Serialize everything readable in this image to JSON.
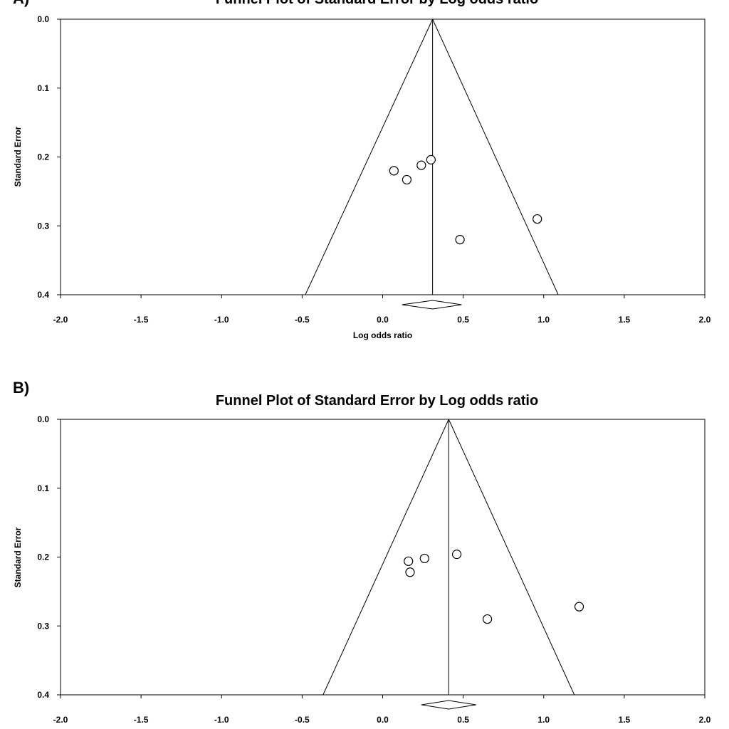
{
  "chart_data": [
    {
      "type": "scatter",
      "panel_label": "A)",
      "title": "Funnel Plot of Standard Error by Log odds ratio",
      "xlabel": "Log odds ratio",
      "ylabel": "Standard Error",
      "xlim": [
        -2.0,
        2.0
      ],
      "ylim": [
        0.0,
        0.4
      ],
      "y_inverted": true,
      "x_ticks": [
        "-2.0",
        "-1.5",
        "-1.0",
        "-0.5",
        "0.0",
        "0.5",
        "1.0",
        "1.5",
        "2.0"
      ],
      "y_ticks": [
        "0.0",
        "0.1",
        "0.2",
        "0.3",
        "0.4"
      ],
      "pooled_estimate": 0.31,
      "funnel_bottom_x": [
        -0.48,
        1.09
      ],
      "diamond": {
        "center": 0.31,
        "lower": 0.12,
        "upper": 0.49
      },
      "points": [
        {
          "x": 0.07,
          "y": 0.22
        },
        {
          "x": 0.15,
          "y": 0.233
        },
        {
          "x": 0.24,
          "y": 0.212
        },
        {
          "x": 0.3,
          "y": 0.204
        },
        {
          "x": 0.48,
          "y": 0.32
        },
        {
          "x": 0.96,
          "y": 0.29
        }
      ]
    },
    {
      "type": "scatter",
      "panel_label": "B)",
      "title": "Funnel Plot of Standard Error by Log odds ratio",
      "xlabel": "",
      "ylabel": "Standard Error",
      "xlim": [
        -2.0,
        2.0
      ],
      "ylim": [
        0.0,
        0.4
      ],
      "y_inverted": true,
      "x_ticks": [
        "-2.0",
        "-1.5",
        "-1.0",
        "-0.5",
        "0.0",
        "0.5",
        "1.0",
        "1.5",
        "2.0"
      ],
      "y_ticks": [
        "0.0",
        "0.1",
        "0.2",
        "0.3",
        "0.4"
      ],
      "pooled_estimate": 0.41,
      "funnel_bottom_x": [
        -0.37,
        1.19
      ],
      "diamond": {
        "center": 0.41,
        "lower": 0.24,
        "upper": 0.58
      },
      "points": [
        {
          "x": 0.16,
          "y": 0.206
        },
        {
          "x": 0.17,
          "y": 0.222
        },
        {
          "x": 0.26,
          "y": 0.202
        },
        {
          "x": 0.46,
          "y": 0.196
        },
        {
          "x": 0.65,
          "y": 0.29
        },
        {
          "x": 1.22,
          "y": 0.272
        }
      ]
    }
  ]
}
